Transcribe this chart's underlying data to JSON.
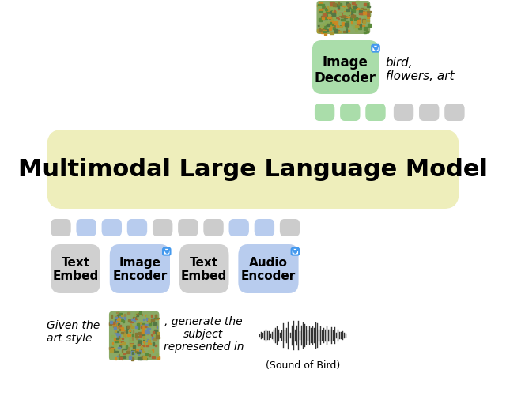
{
  "title": "Multimodal Large Language Model",
  "title_fontsize": 22,
  "title_bg_color": "#eeeebb",
  "image_decoder_label": "Image\nDecoder",
  "image_decoder_bg": "#aaddaa",
  "image_encoder_label": "Image\nEncoder",
  "image_encoder_bg": "#b8ccee",
  "text_embed_label": "Text\nEmbed",
  "text_embed_bg": "#d0d0d0",
  "text_embed2_label": "Text\nEmbed",
  "text_embed2_bg": "#d0d0d0",
  "audio_encoder_label": "Audio\nEncoder",
  "audio_encoder_bg": "#b8ccee",
  "green_token_color": "#aaddaa",
  "blue_token_color": "#b8ccee",
  "gray_token_color": "#cccccc",
  "lock_color": "#4499ee",
  "italic_text_right": "bird,\nflowers, art",
  "bottom_left_text": "Given the\nart style",
  "bottom_mid_text": ", generate the\nsubject\nrepresented in",
  "bottom_right_text": "(Sound of Bird)"
}
